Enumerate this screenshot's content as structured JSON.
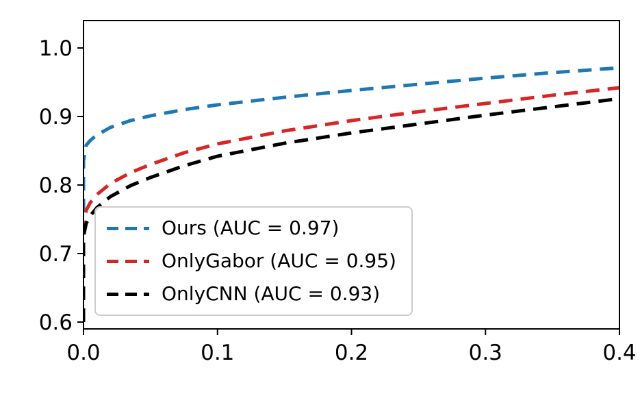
{
  "figure": {
    "background": "#ffffff",
    "spine_color": "#000000",
    "tick_label_color": "#000000"
  },
  "chart_data": {
    "type": "line",
    "title": "",
    "xlabel": "",
    "ylabel": "",
    "grid": false,
    "xlim": [
      0.0,
      0.4
    ],
    "ylim": [
      0.59,
      1.04
    ],
    "xtick_values": [
      0.0,
      0.1,
      0.2,
      0.3,
      0.4
    ],
    "xtick_labels": [
      "0.0",
      "0.1",
      "0.2",
      "0.3",
      "0.4"
    ],
    "ytick_values": [
      0.6,
      0.7,
      0.8,
      0.9,
      1.0
    ],
    "ytick_labels": [
      "0.6",
      "0.7",
      "0.8",
      "0.9",
      "1.0"
    ],
    "legend_position": "lower-left",
    "series": [
      {
        "name": "Ours",
        "label": "Ours (AUC = 0.97)",
        "auc": 0.97,
        "color": "#1f77b4",
        "linestyle": "dashed",
        "x": [
          0.0,
          0.0,
          0.002,
          0.005,
          0.01,
          0.02,
          0.035,
          0.05,
          0.075,
          0.1,
          0.15,
          0.2,
          0.25,
          0.3,
          0.35,
          0.4
        ],
        "y": [
          0.6,
          0.835,
          0.858,
          0.865,
          0.873,
          0.884,
          0.894,
          0.901,
          0.91,
          0.917,
          0.928,
          0.938,
          0.947,
          0.956,
          0.964,
          0.971
        ]
      },
      {
        "name": "OnlyGabor",
        "label": "OnlyGabor (AUC = 0.95)",
        "auc": 0.95,
        "color": "#d62728",
        "linestyle": "dashed",
        "x": [
          0.0,
          0.0,
          0.002,
          0.005,
          0.01,
          0.02,
          0.035,
          0.05,
          0.075,
          0.1,
          0.15,
          0.2,
          0.25,
          0.3,
          0.35,
          0.4
        ],
        "y": [
          0.6,
          0.745,
          0.763,
          0.774,
          0.786,
          0.802,
          0.818,
          0.83,
          0.847,
          0.86,
          0.879,
          0.894,
          0.907,
          0.919,
          0.931,
          0.942
        ]
      },
      {
        "name": "OnlyCNN",
        "label": "OnlyCNN (AUC = 0.93)",
        "auc": 0.93,
        "color": "#000000",
        "linestyle": "dashed",
        "x": [
          0.0,
          0.0,
          0.002,
          0.005,
          0.01,
          0.02,
          0.035,
          0.05,
          0.075,
          0.1,
          0.15,
          0.2,
          0.25,
          0.3,
          0.35,
          0.4
        ],
        "y": [
          0.6,
          0.725,
          0.744,
          0.755,
          0.767,
          0.783,
          0.799,
          0.811,
          0.828,
          0.842,
          0.861,
          0.876,
          0.889,
          0.902,
          0.914,
          0.926
        ]
      }
    ]
  }
}
